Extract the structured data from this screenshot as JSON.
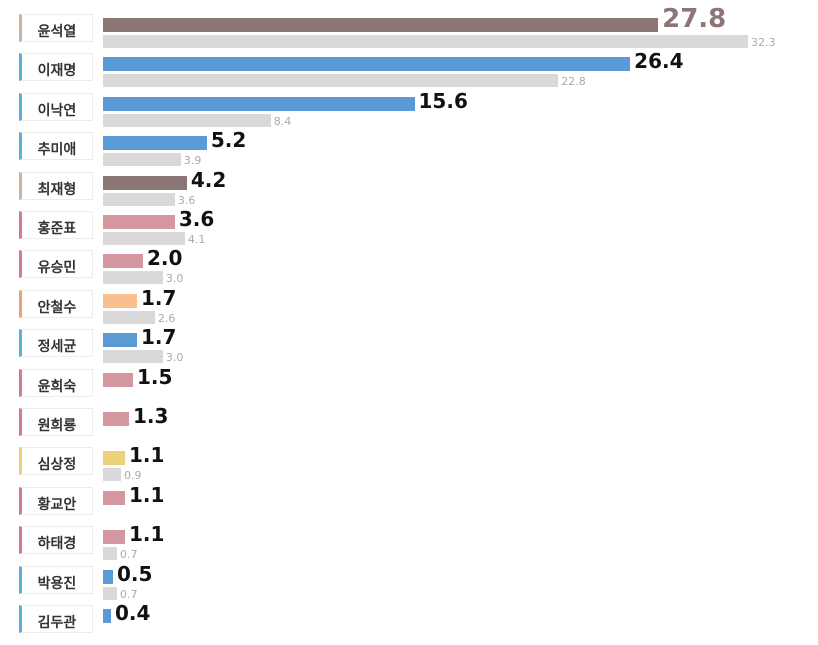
{
  "chart_data": {
    "type": "bar",
    "orientation": "horizontal",
    "categories": [
      "윤석열",
      "이재명",
      "이낙연",
      "추미애",
      "최재형",
      "홍준표",
      "유승민",
      "안철수",
      "정세균",
      "윤희숙",
      "원희룡",
      "심상정",
      "황교안",
      "하태경",
      "박용진",
      "김두관"
    ],
    "series": [
      {
        "values": [
          27.8,
          26.4,
          15.6,
          5.2,
          4.2,
          3.6,
          2.0,
          1.7,
          1.7,
          1.5,
          1.3,
          1.1,
          1.1,
          1.1,
          0.5,
          0.4
        ],
        "labels": [
          "27.8",
          "26.4",
          "15.6",
          "5.2",
          "4.2",
          "3.6",
          "2.0",
          "1.7",
          "1.7",
          "1.5",
          "1.3",
          "1.1",
          "1.1",
          "1.1",
          "0.5",
          "0.4"
        ]
      },
      {
        "values": [
          32.3,
          22.8,
          8.4,
          3.9,
          3.6,
          4.1,
          3.0,
          2.6,
          3.0,
          null,
          null,
          0.9,
          null,
          0.7,
          0.7,
          null
        ],
        "labels": [
          "32.3",
          "22.8",
          "8.4",
          "3.9",
          "3.6",
          "4.1",
          "3.0",
          "2.6",
          "3.0",
          "",
          "",
          "0.9",
          "",
          "0.7",
          "0.7",
          ""
        ]
      }
    ],
    "bar_colors": [
      "#8c7575",
      "#5b9bd5",
      "#5b9bd5",
      "#5b9bd5",
      "#8c7575",
      "#d4979f",
      "#d4979f",
      "#f8c08e",
      "#5b9bd5",
      "#d4979f",
      "#d4979f",
      "#ecd07a",
      "#d4979f",
      "#d4979f",
      "#5b9bd5",
      "#5b9bd5"
    ],
    "label_accent_colors": [
      "#c9b3a1",
      "#5bb0d9",
      "#5bb0d9",
      "#5bb0d9",
      "#c9b3a1",
      "#d47a8a",
      "#d47a8a",
      "#f0a070",
      "#5bb0d9",
      "#d47a8a",
      "#d47a8a",
      "#ecd07a",
      "#d47a8a",
      "#d47a8a",
      "#5bb0d9",
      "#5bb0d9"
    ],
    "previous_bar_color": "#d9d9d9",
    "lead_value_color": "#8c7575",
    "xlim": [
      0,
      32.3
    ],
    "grid": false,
    "legend": "none",
    "title": "",
    "xlabel": "",
    "ylabel": ""
  }
}
